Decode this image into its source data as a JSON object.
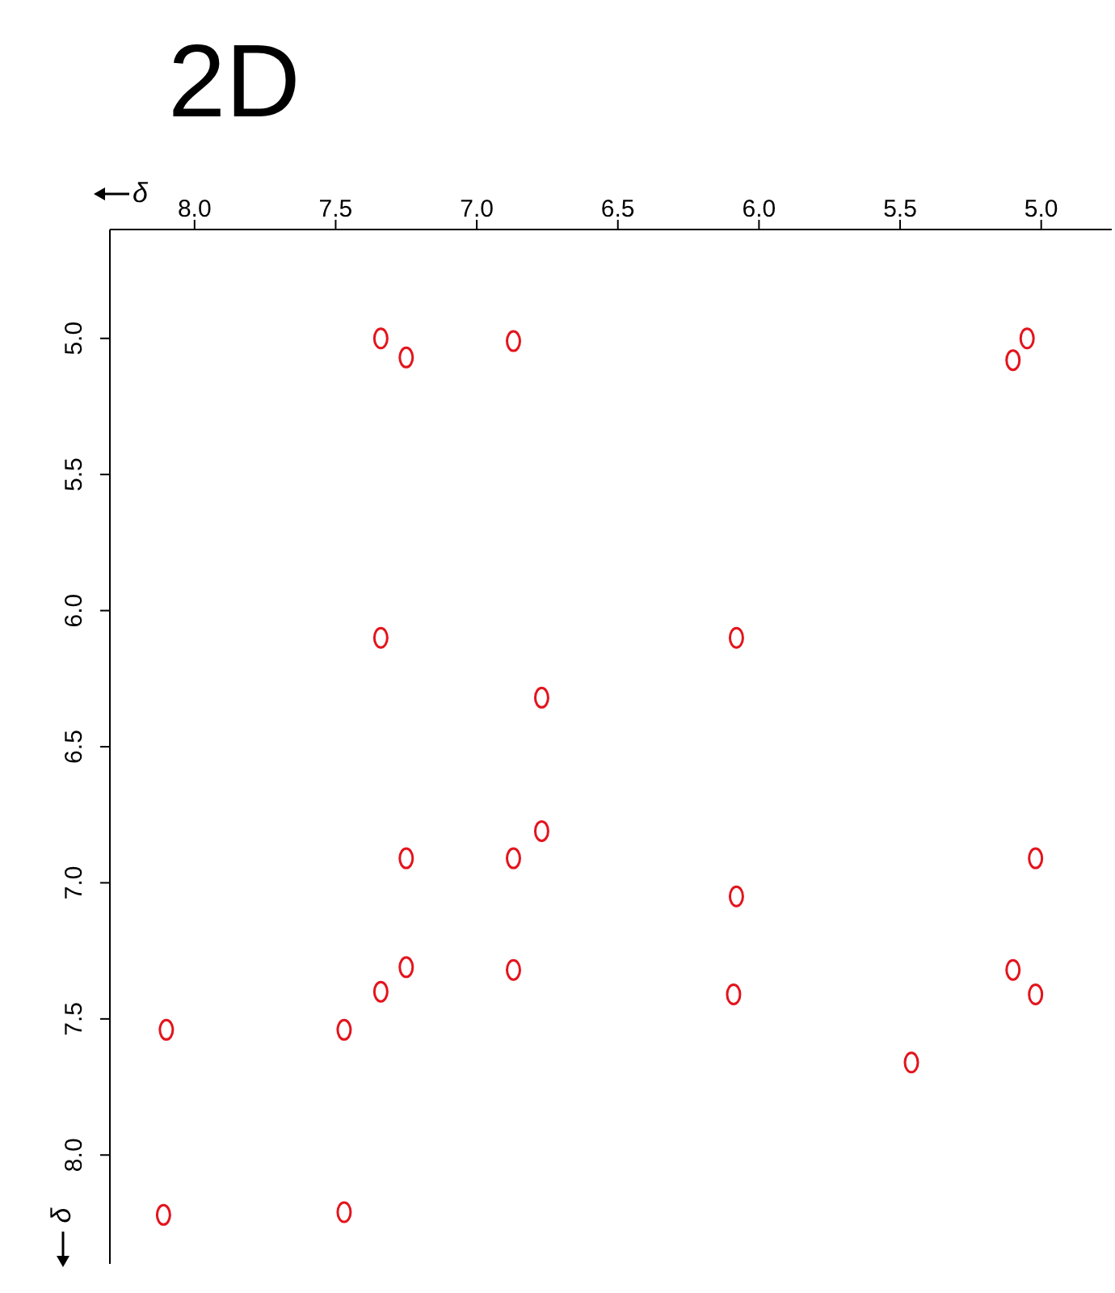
{
  "chart_data": {
    "type": "scatter",
    "title": "2D",
    "xlabel": "δ",
    "ylabel": "δ",
    "xlim": [
      8.3,
      4.75
    ],
    "xticks": [
      {
        "value": 8,
        "label": "8.0"
      },
      7.5,
      {
        "value": 7,
        "label": "7.0"
      },
      6.5,
      {
        "value": 6,
        "label": "6.0"
      },
      5.5,
      {
        "value": 5,
        "label": "5.0"
      }
    ],
    "ylim": [
      8.4,
      4.6
    ],
    "yticks": [
      {
        "value": 5,
        "label": "5.0"
      },
      5.5,
      {
        "value": 6,
        "label": "6.0"
      },
      6.5,
      {
        "value": 7,
        "label": "7.0"
      },
      7.5,
      {
        "value": 8,
        "label": "8.0"
      }
    ],
    "grid": false,
    "legend": false,
    "marker": "circle",
    "series": [
      {
        "color": "#e3141c",
        "x": [
          7.34,
          7.25,
          6.87,
          5.05,
          5.1,
          7.34,
          6.08,
          6.77,
          7.25,
          6.87,
          6.77,
          6.08,
          5.02,
          7.25,
          7.34,
          6.87,
          6.09,
          5.1,
          5.02,
          8.1,
          7.47,
          5.46,
          8.11,
          7.47
        ],
        "values": [
          5.0,
          5.07,
          5.01,
          5.0,
          5.08,
          6.1,
          6.1,
          6.32,
          6.91,
          6.91,
          6.81,
          7.05,
          6.91,
          7.31,
          7.4,
          7.32,
          7.41,
          7.32,
          7.41,
          7.54,
          7.54,
          7.66,
          8.22,
          8.21
        ]
      }
    ]
  }
}
